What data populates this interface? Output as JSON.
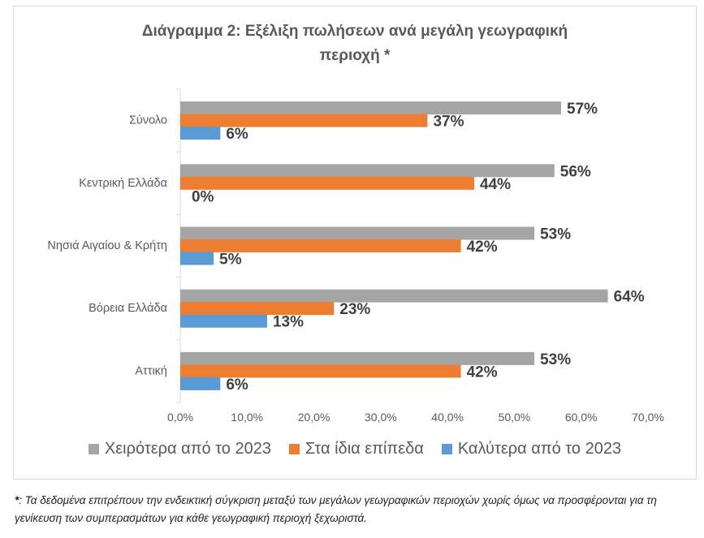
{
  "title_line1": "Διάγραμμα 2: Εξέλιξη πωλήσεων ανά μεγάλη γεωγραφική",
  "title_line2": "περιοχή *",
  "footnote": {
    "marker": "*",
    "text": ": Τα δεδομένα επιτρέπουν την ενδεικτική σύγκριση μεταξύ των μεγάλων γεωγραφικών περιοχών χωρίς όμως να προσφέρονται για τη γενίκευση των συμπερασμάτων για κάθε γεωγραφική περιοχή ξεχωριστά."
  },
  "chart_data": {
    "type": "bar",
    "orientation": "horizontal",
    "categories": [
      "Σύνολο",
      "Κεντρική Ελλάδα",
      "Νησιά Αιγαίου & Κρήτη",
      "Βόρεια Ελλάδα",
      "Αττική"
    ],
    "series": [
      {
        "name": "Χειρότερα από το 2023",
        "color": "#a5a5a5",
        "values": [
          57,
          56,
          53,
          64,
          53
        ],
        "labels": [
          "57%",
          "56%",
          "53%",
          "64%",
          "53%"
        ]
      },
      {
        "name": "Στα ίδια επίπεδα",
        "color": "#ed7d31",
        "values": [
          37,
          44,
          42,
          23,
          42
        ],
        "labels": [
          "37%",
          "44%",
          "42%",
          "23%",
          "42%"
        ]
      },
      {
        "name": "Καλύτερα από το 2023",
        "color": "#5b9bd5",
        "values": [
          6,
          0,
          5,
          13,
          6
        ],
        "labels": [
          "6%",
          "0%",
          "5%",
          "13%",
          "6%"
        ]
      }
    ],
    "xlim": [
      0,
      70
    ],
    "xticks": [
      "0,0%",
      "10,0%",
      "20,0%",
      "30,0%",
      "40,0%",
      "50,0%",
      "60,0%",
      "70,0%"
    ],
    "grid": false,
    "legend_position": "bottom"
  }
}
